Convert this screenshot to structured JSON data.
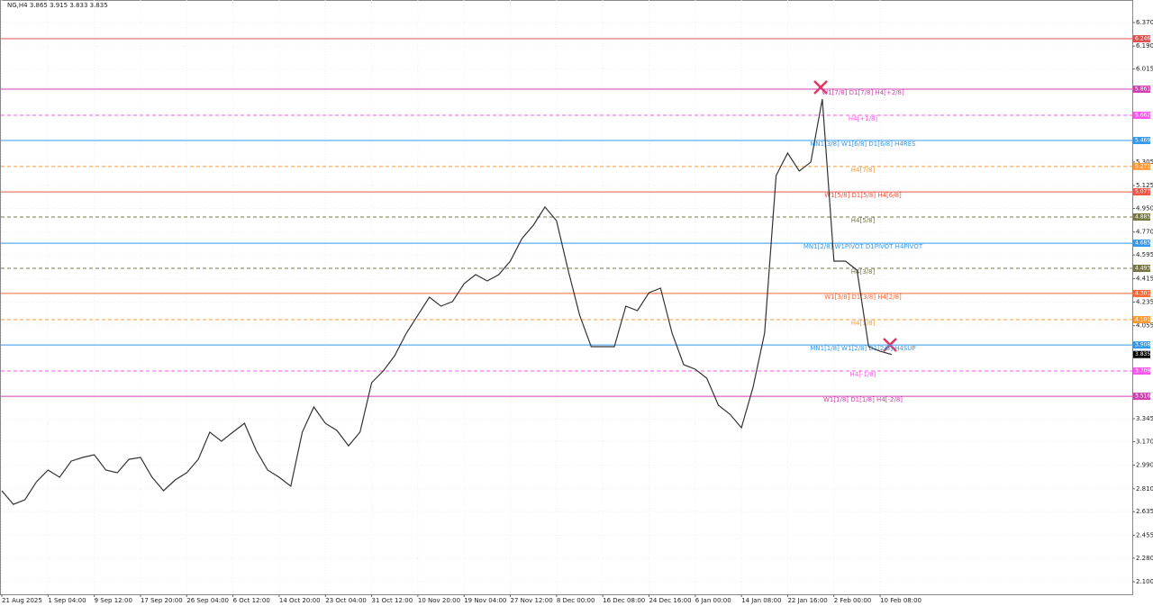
{
  "chart_data": {
    "type": "line",
    "title": "NG,H4  3.865 3.915 3.833 3.835",
    "color": "#333333",
    "grid": true,
    "categories": [
      "21 Aug 2025",
      null,
      null,
      null,
      "1 Sep 04:00",
      null,
      null,
      null,
      "9 Sep 12:00",
      null,
      null,
      null,
      "17 Sep 20:00",
      null,
      null,
      null,
      "26 Sep 04:00",
      null,
      null,
      null,
      "6 Oct 12:00",
      null,
      null,
      null,
      "14 Oct 20:00",
      null,
      null,
      null,
      "23 Oct 04:00",
      null,
      null,
      null,
      "31 Oct 12:00",
      null,
      null,
      null,
      "10 Nov 20:00",
      null,
      null,
      null,
      "19 Nov 04:00",
      null,
      null,
      null,
      "27 Nov 12:00",
      null,
      null,
      null,
      "8 Dec 00:00",
      null,
      null,
      null,
      "16 Dec 08:00",
      null,
      null,
      null,
      "24 Dec 16:00",
      null,
      null,
      null,
      "6 Jan 00:00",
      null,
      null,
      null,
      "14 Jan 08:00",
      null,
      null,
      null,
      "22 Jan 16:00",
      null,
      null,
      null,
      "2 Feb 00:00",
      null,
      null,
      null,
      "10 Feb 08:00",
      null
    ],
    "values": [
      2.795,
      2.691,
      2.726,
      2.863,
      2.953,
      2.898,
      3.021,
      3.049,
      3.07,
      2.953,
      2.932,
      3.035,
      3.049,
      2.898,
      2.795,
      2.877,
      2.932,
      3.035,
      3.242,
      3.173,
      3.242,
      3.31,
      3.104,
      2.953,
      2.898,
      2.829,
      3.242,
      3.434,
      3.31,
      3.255,
      3.138,
      3.242,
      3.62,
      3.709,
      3.826,
      3.998,
      4.135,
      4.273,
      4.204,
      4.239,
      4.376,
      4.445,
      4.397,
      4.445,
      4.548,
      4.72,
      4.823,
      4.961,
      4.857,
      4.479,
      4.135,
      3.895,
      3.895,
      3.895,
      4.204,
      4.17,
      4.307,
      4.342,
      3.998,
      3.757,
      3.723,
      3.654,
      3.448,
      3.379,
      3.276,
      3.585,
      3.998,
      5.201,
      5.373,
      5.236,
      5.304,
      5.786,
      4.548,
      4.548,
      4.479,
      3.895,
      3.86,
      3.835
    ],
    "ylim": [
      2.004,
      6.542
    ],
    "yticks": [
      {
        "value": 6.37,
        "label": "6.370"
      },
      {
        "value": 6.19,
        "label": "6.190"
      },
      6.015,
      5.305,
      5.125,
      {
        "value": 4.95,
        "label": "4.950"
      },
      {
        "value": 4.77,
        "label": "4.770"
      },
      4.595,
      4.415,
      4.235,
      4.055,
      3.345,
      {
        "value": 3.17,
        "label": "3.170"
      },
      {
        "value": 2.99,
        "label": "2.990"
      },
      {
        "value": 2.81,
        "label": "2.810"
      },
      2.635,
      2.455,
      {
        "value": 2.28,
        "label": "2.280"
      },
      {
        "value": 2.1,
        "label": "2.100"
      }
    ],
    "levels": [
      {
        "name": null,
        "value": 6.246,
        "color": "#e05050",
        "dashed": false
      },
      {
        "name": "W1[7/8] D1[7/8] H4[+2/8]",
        "value": 5.861,
        "color": "#d040b0",
        "dashed": false
      },
      {
        "name": "H4[+1/8]",
        "value": 5.662,
        "color": "#ff55ee",
        "dashed": true
      },
      {
        "name": "MN1[3/8] W1[6/8] D1[6/8] H4RES",
        "value": 5.469,
        "color": "#3399ee",
        "dashed": false
      },
      {
        "name": "H4[7/8]",
        "value": 5.271,
        "color": "#ff9933",
        "dashed": true
      },
      {
        "name": "W1[5/8] D1[5/8] H4[6/8]",
        "value": 5.077,
        "color": "#ee5544",
        "dashed": false
      },
      {
        "name": "H4[5/8]",
        "value": 4.885,
        "color": "#777744",
        "dashed": true
      },
      {
        "name": "MN1[2/8] W1PIVOT D1PIVOT H4PIVOT",
        "value": 4.685,
        "color": "#3399ee",
        "dashed": false
      },
      {
        "name": "H4[3/8]",
        "value": 4.493,
        "color": "#777744",
        "dashed": true
      },
      {
        "name": "W1[3/8] D1[3/8] H4[2/8]",
        "value": 4.301,
        "color": "#ff6633",
        "dashed": false
      },
      {
        "name": "H4[1/8]",
        "value": 4.101,
        "color": "#ff9933",
        "dashed": true
      },
      {
        "name": "MN1[1/8] W1[2/8] D1[2/8] H4SUP",
        "value": 3.908,
        "color": "#3399ee",
        "dashed": false
      },
      {
        "name": "H4[-1/8]",
        "value": 3.709,
        "color": "#ff55ee",
        "dashed": true
      },
      {
        "name": "W1[1/8] D1[1/8] H4[-2/8]",
        "value": 3.516,
        "color": "#d040b0",
        "dashed": false
      }
    ],
    "current_price": 3.835
  }
}
